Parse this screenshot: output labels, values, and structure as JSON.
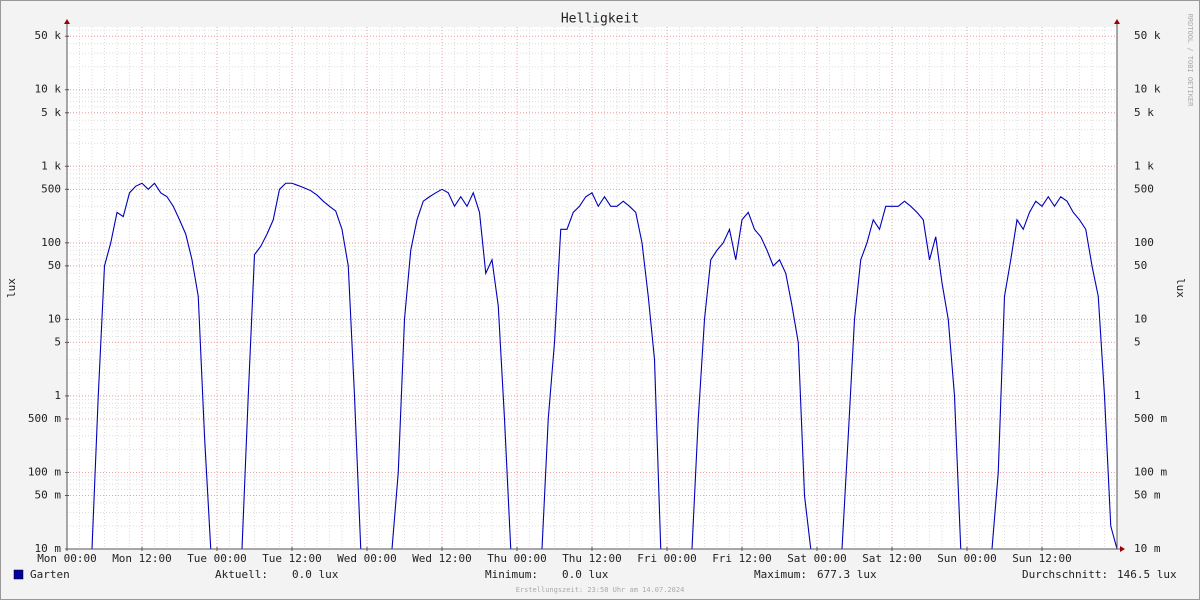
{
  "chart_data": {
    "type": "line",
    "title": "Helligkeit",
    "y_label": "lux",
    "watermark": "RRDTOOL / TOBI OETIKER",
    "log_y": true,
    "grid": true,
    "xlim": [
      0,
      168
    ],
    "ylim": [
      0.01,
      66000
    ],
    "xticks": [
      {
        "value": 0,
        "label": "Mon 00:00"
      },
      {
        "value": 12,
        "label": "Mon 12:00"
      },
      {
        "value": 24,
        "label": "Tue 00:00"
      },
      {
        "value": 36,
        "label": "Tue 12:00"
      },
      {
        "value": 48,
        "label": "Wed 00:00"
      },
      {
        "value": 60,
        "label": "Wed 12:00"
      },
      {
        "value": 72,
        "label": "Thu 00:00"
      },
      {
        "value": 84,
        "label": "Thu 12:00"
      },
      {
        "value": 96,
        "label": "Fri 00:00"
      },
      {
        "value": 108,
        "label": "Fri 12:00"
      },
      {
        "value": 120,
        "label": "Sat 00:00"
      },
      {
        "value": 132,
        "label": "Sat 12:00"
      },
      {
        "value": 144,
        "label": "Sun 00:00"
      },
      {
        "value": 156,
        "label": "Sun 12:00"
      }
    ],
    "yticks": [
      {
        "value": 50000,
        "label": "50 k"
      },
      {
        "value": 10000,
        "label": "10 k"
      },
      {
        "value": 5000,
        "label": "5 k"
      },
      {
        "value": 1000,
        "label": "1 k"
      },
      500,
      100,
      50,
      10,
      5,
      1,
      {
        "value": 0.5,
        "label": "500 m"
      },
      {
        "value": 0.1,
        "label": "100 m"
      },
      {
        "value": 0.05,
        "label": "50 m"
      },
      {
        "value": 0.01,
        "label": "10 m"
      }
    ],
    "x": [
      0,
      1,
      2,
      3,
      4,
      5,
      6,
      7,
      8,
      9,
      10,
      11,
      12,
      13,
      14,
      15,
      16,
      17,
      18,
      19,
      20,
      21,
      22,
      23,
      24,
      25,
      26,
      27,
      28,
      29,
      30,
      31,
      32,
      33,
      34,
      35,
      36,
      37,
      38,
      39,
      40,
      41,
      42,
      43,
      44,
      45,
      46,
      47,
      48,
      49,
      50,
      51,
      52,
      53,
      54,
      55,
      56,
      57,
      58,
      59,
      60,
      61,
      62,
      63,
      64,
      65,
      66,
      67,
      68,
      69,
      70,
      71,
      72,
      73,
      74,
      75,
      76,
      77,
      78,
      79,
      80,
      81,
      82,
      83,
      84,
      85,
      86,
      87,
      88,
      89,
      90,
      91,
      92,
      93,
      94,
      95,
      96,
      97,
      98,
      99,
      100,
      101,
      102,
      103,
      104,
      105,
      106,
      107,
      108,
      109,
      110,
      111,
      112,
      113,
      114,
      115,
      116,
      117,
      118,
      119,
      120,
      121,
      122,
      123,
      124,
      125,
      126,
      127,
      128,
      129,
      130,
      131,
      132,
      133,
      134,
      135,
      136,
      137,
      138,
      139,
      140,
      141,
      142,
      143,
      144,
      145,
      146,
      147,
      148,
      149,
      150,
      151,
      152,
      153,
      154,
      155,
      156,
      157,
      158,
      159,
      160,
      161,
      162,
      163,
      164,
      165,
      166,
      167,
      168
    ],
    "series": [
      {
        "name": "Garten",
        "color": "#0000b8",
        "values": [
          0,
          0,
          0,
          0,
          0,
          1,
          50,
          100,
          250,
          220,
          450,
          550,
          600,
          500,
          600,
          450,
          400,
          300,
          200,
          130,
          60,
          20,
          0.3,
          0,
          0,
          0,
          0,
          0,
          0,
          1,
          70,
          90,
          130,
          200,
          500,
          600,
          600,
          560,
          520,
          480,
          420,
          350,
          300,
          260,
          150,
          50,
          1,
          0,
          0,
          0,
          0,
          0,
          0,
          0.1,
          10,
          80,
          200,
          350,
          400,
          450,
          500,
          450,
          300,
          400,
          300,
          450,
          250,
          40,
          60,
          15,
          0.5,
          0,
          0,
          0,
          0,
          0,
          0,
          0.5,
          5,
          150,
          150,
          250,
          300,
          400,
          450,
          300,
          400,
          300,
          300,
          350,
          300,
          250,
          100,
          20,
          3,
          0,
          0,
          0,
          0,
          0,
          0,
          0.5,
          10,
          60,
          80,
          100,
          150,
          60,
          200,
          250,
          150,
          120,
          80,
          50,
          60,
          40,
          15,
          5,
          0.05,
          0,
          0,
          0,
          0,
          0,
          0,
          0.3,
          10,
          60,
          100,
          200,
          150,
          300,
          300,
          300,
          350,
          300,
          250,
          200,
          60,
          120,
          30,
          10,
          1,
          0,
          0,
          0,
          0,
          0,
          0,
          0.1,
          20,
          60,
          200,
          150,
          250,
          350,
          300,
          400,
          300,
          400,
          350,
          250,
          200,
          150,
          50,
          20,
          1,
          0.02,
          0
        ]
      }
    ],
    "stats": [
      {
        "label": "Aktuell:",
        "value": "0.0 lux"
      },
      {
        "label": "Minimum:",
        "value": "0.0 lux"
      },
      {
        "label": "Maximum:",
        "value": "677.3 lux"
      },
      {
        "label": "Durchschnitt:",
        "value": "146.5 lux"
      }
    ],
    "footer": "Erstellungszeit: 23:58 Uhr am 14.07.2024"
  }
}
